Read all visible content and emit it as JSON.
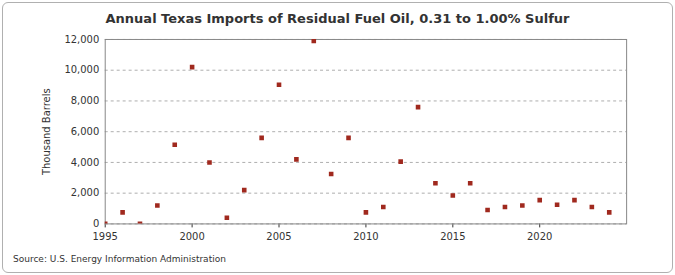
{
  "chart_data": {
    "type": "scatter",
    "title": "Annual Texas Imports of Residual Fuel Oil, 0.31 to 1.00% Sulfur",
    "ylabel": "Thousand Barrels",
    "source": "Source: U.S. Energy Information Administration",
    "x": [
      1995,
      1996,
      1997,
      1998,
      1999,
      2000,
      2001,
      2002,
      2003,
      2004,
      2005,
      2006,
      2007,
      2008,
      2009,
      2010,
      2011,
      2012,
      2013,
      2014,
      2015,
      2016,
      2017,
      2018,
      2019,
      2020,
      2021,
      2022,
      2023,
      2024
    ],
    "values": [
      10,
      750,
      10,
      1200,
      5150,
      10200,
      4000,
      400,
      2200,
      5600,
      9050,
      4200,
      11900,
      3250,
      5600,
      750,
      1100,
      4050,
      7600,
      2650,
      1850,
      2650,
      900,
      1100,
      1200,
      1550,
      1250,
      1550,
      1100,
      750
    ],
    "color": "#a0291e",
    "marker": "square",
    "grid": true,
    "xlim": [
      1995,
      2025
    ],
    "xticks": [
      1995,
      2000,
      2005,
      2010,
      2015,
      2020
    ],
    "ylim": [
      0,
      12000
    ],
    "yticks": [
      0,
      {
        "value": 2000,
        "label": "2,000"
      },
      {
        "value": 4000,
        "label": "4,000"
      },
      {
        "value": 6000,
        "label": "6,000"
      },
      {
        "value": 8000,
        "label": "8,000"
      },
      {
        "value": 10000,
        "label": "10,000"
      },
      {
        "value": 12000,
        "label": "12,000"
      }
    ]
  }
}
